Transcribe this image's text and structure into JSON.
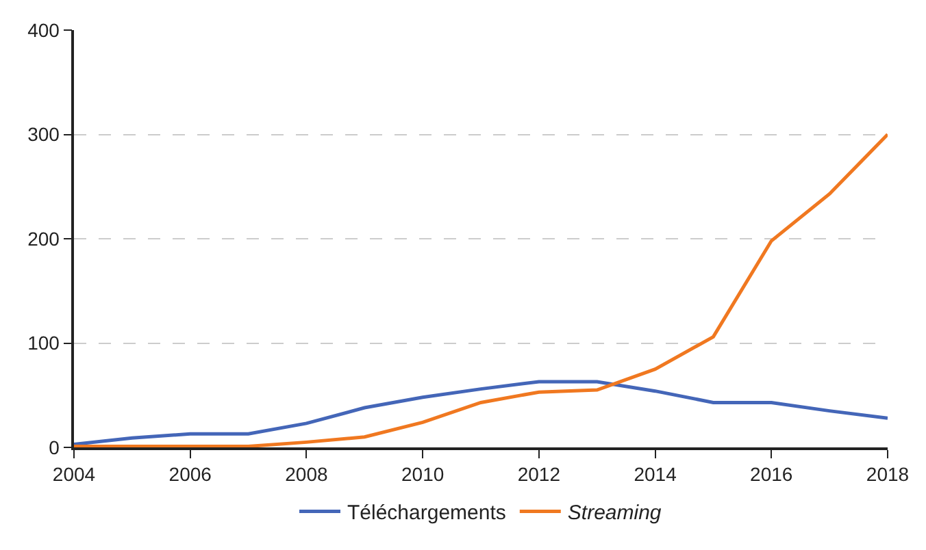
{
  "chart_data": {
    "type": "line",
    "x": [
      2004,
      2005,
      2006,
      2007,
      2008,
      2009,
      2010,
      2011,
      2012,
      2013,
      2014,
      2015,
      2016,
      2017,
      2018
    ],
    "series": [
      {
        "name": "Téléchargements",
        "color": "#4466b8",
        "values": [
          3,
          9,
          13,
          13,
          23,
          38,
          48,
          56,
          63,
          63,
          54,
          43,
          43,
          35,
          28
        ]
      },
      {
        "name": "Streaming",
        "color": "#f07820",
        "values": [
          1,
          1,
          1,
          1,
          5,
          10,
          24,
          43,
          53,
          55,
          75,
          106,
          198,
          243,
          300
        ]
      }
    ],
    "xlim": [
      2004,
      2018
    ],
    "xticks": [
      2004,
      2006,
      2008,
      2010,
      2012,
      2014,
      2016,
      2018
    ],
    "ylim": [
      0,
      400
    ],
    "yticks": [
      0,
      100,
      200,
      300,
      400
    ],
    "grid": "y",
    "legend": "bottom",
    "marker": "none",
    "line_style": "solid"
  }
}
